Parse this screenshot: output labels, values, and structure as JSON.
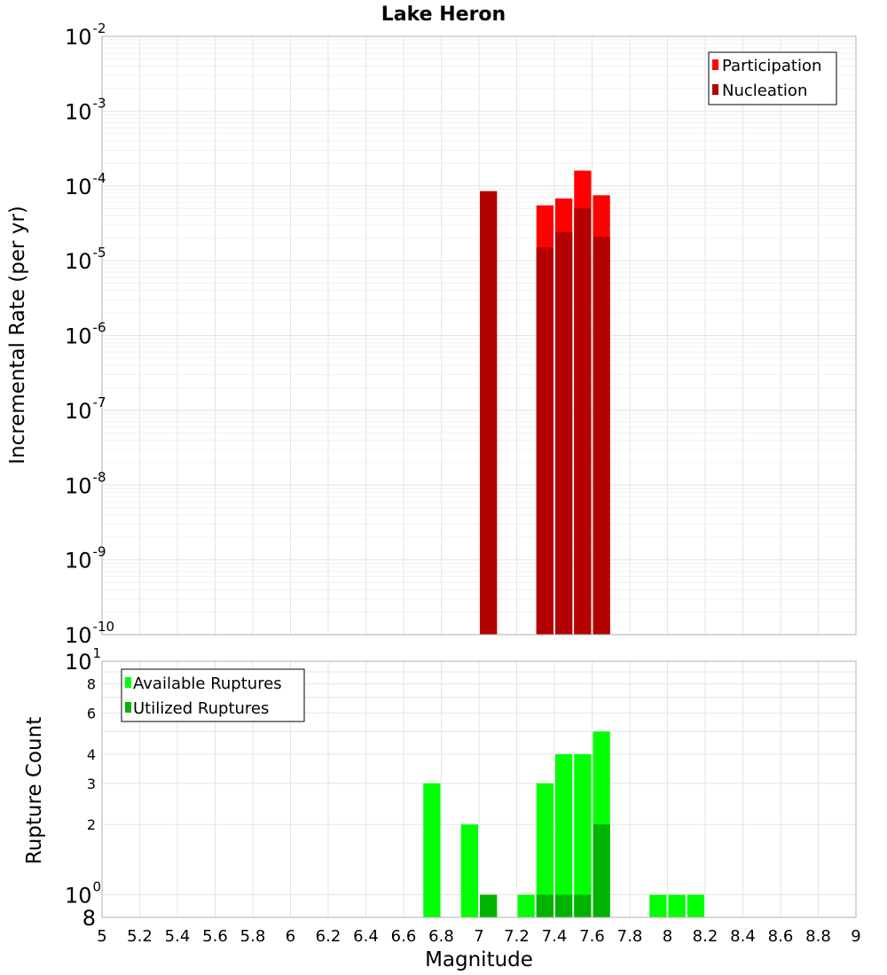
{
  "title": "Lake Heron",
  "xlabel": "Magnitude",
  "x_ticks": [
    "5",
    "5.2",
    "5.4",
    "5.6",
    "5.8",
    "6",
    "6.2",
    "6.4",
    "6.6",
    "6.8",
    "7",
    "7.2",
    "7.4",
    "7.6",
    "7.8",
    "8",
    "8.2",
    "8.4",
    "8.6",
    "8.8",
    "9"
  ],
  "top_panel": {
    "ylabel": "Incremental Rate (per yr)",
    "y_ticks": [
      {
        "base": "10",
        "exp": "-2"
      },
      {
        "base": "10",
        "exp": "-3"
      },
      {
        "base": "10",
        "exp": "-4"
      },
      {
        "base": "10",
        "exp": "-5"
      },
      {
        "base": "10",
        "exp": "-6"
      },
      {
        "base": "10",
        "exp": "-7"
      },
      {
        "base": "10",
        "exp": "-8"
      },
      {
        "base": "10",
        "exp": "-9"
      },
      {
        "base": "10",
        "exp": "-10"
      }
    ],
    "legend": [
      "Participation",
      "Nucleation"
    ]
  },
  "bottom_panel": {
    "ylabel": "Rupture Count",
    "y_ticks_major": [
      {
        "base": "10",
        "exp": "1"
      },
      {
        "base": "10",
        "exp": "0"
      }
    ],
    "y_ticks_minor": [
      "8",
      "6",
      "4",
      "3",
      "2",
      "8"
    ],
    "legend": [
      "Available Ruptures",
      "Utilized Ruptures"
    ]
  },
  "colors": {
    "participation": "#ff0000",
    "nucleation": "#b30000",
    "available": "#00ff00",
    "utilized": "#00b300"
  },
  "chart_data": [
    {
      "type": "bar",
      "title": "Lake Heron",
      "xlabel": "Magnitude",
      "ylabel": "Incremental Rate (per yr)",
      "y_scale": "log",
      "xlim": [
        5,
        9
      ],
      "ylim": [
        1e-10,
        0.01
      ],
      "bar_width": 0.1,
      "grid": true,
      "legend_position": "top-right",
      "x": [
        7.05,
        7.35,
        7.45,
        7.55,
        7.65
      ],
      "series": [
        {
          "name": "Participation",
          "values": [
            8.5e-05,
            5.5e-05,
            6.8e-05,
            0.00016,
            7.5e-05
          ]
        },
        {
          "name": "Nucleation",
          "values": [
            8.5e-05,
            1.5e-05,
            2.4e-05,
            5e-05,
            2.1e-05
          ]
        }
      ]
    },
    {
      "type": "bar",
      "xlabel": "Magnitude",
      "ylabel": "Rupture Count",
      "y_scale": "log",
      "xlim": [
        5,
        9
      ],
      "ylim": [
        0.8,
        10
      ],
      "bar_width": 0.1,
      "grid": true,
      "legend_position": "top-left",
      "x": [
        6.75,
        6.95,
        7.05,
        7.25,
        7.35,
        7.45,
        7.55,
        7.65,
        7.95,
        8.05,
        8.15
      ],
      "series": [
        {
          "name": "Available Ruptures",
          "values": [
            3,
            2,
            1,
            1,
            3,
            4,
            4,
            5,
            1,
            1,
            1
          ]
        },
        {
          "name": "Utilized Ruptures",
          "values": [
            0,
            0,
            1,
            0,
            1,
            1,
            1,
            2,
            0,
            0,
            0
          ]
        }
      ]
    }
  ]
}
